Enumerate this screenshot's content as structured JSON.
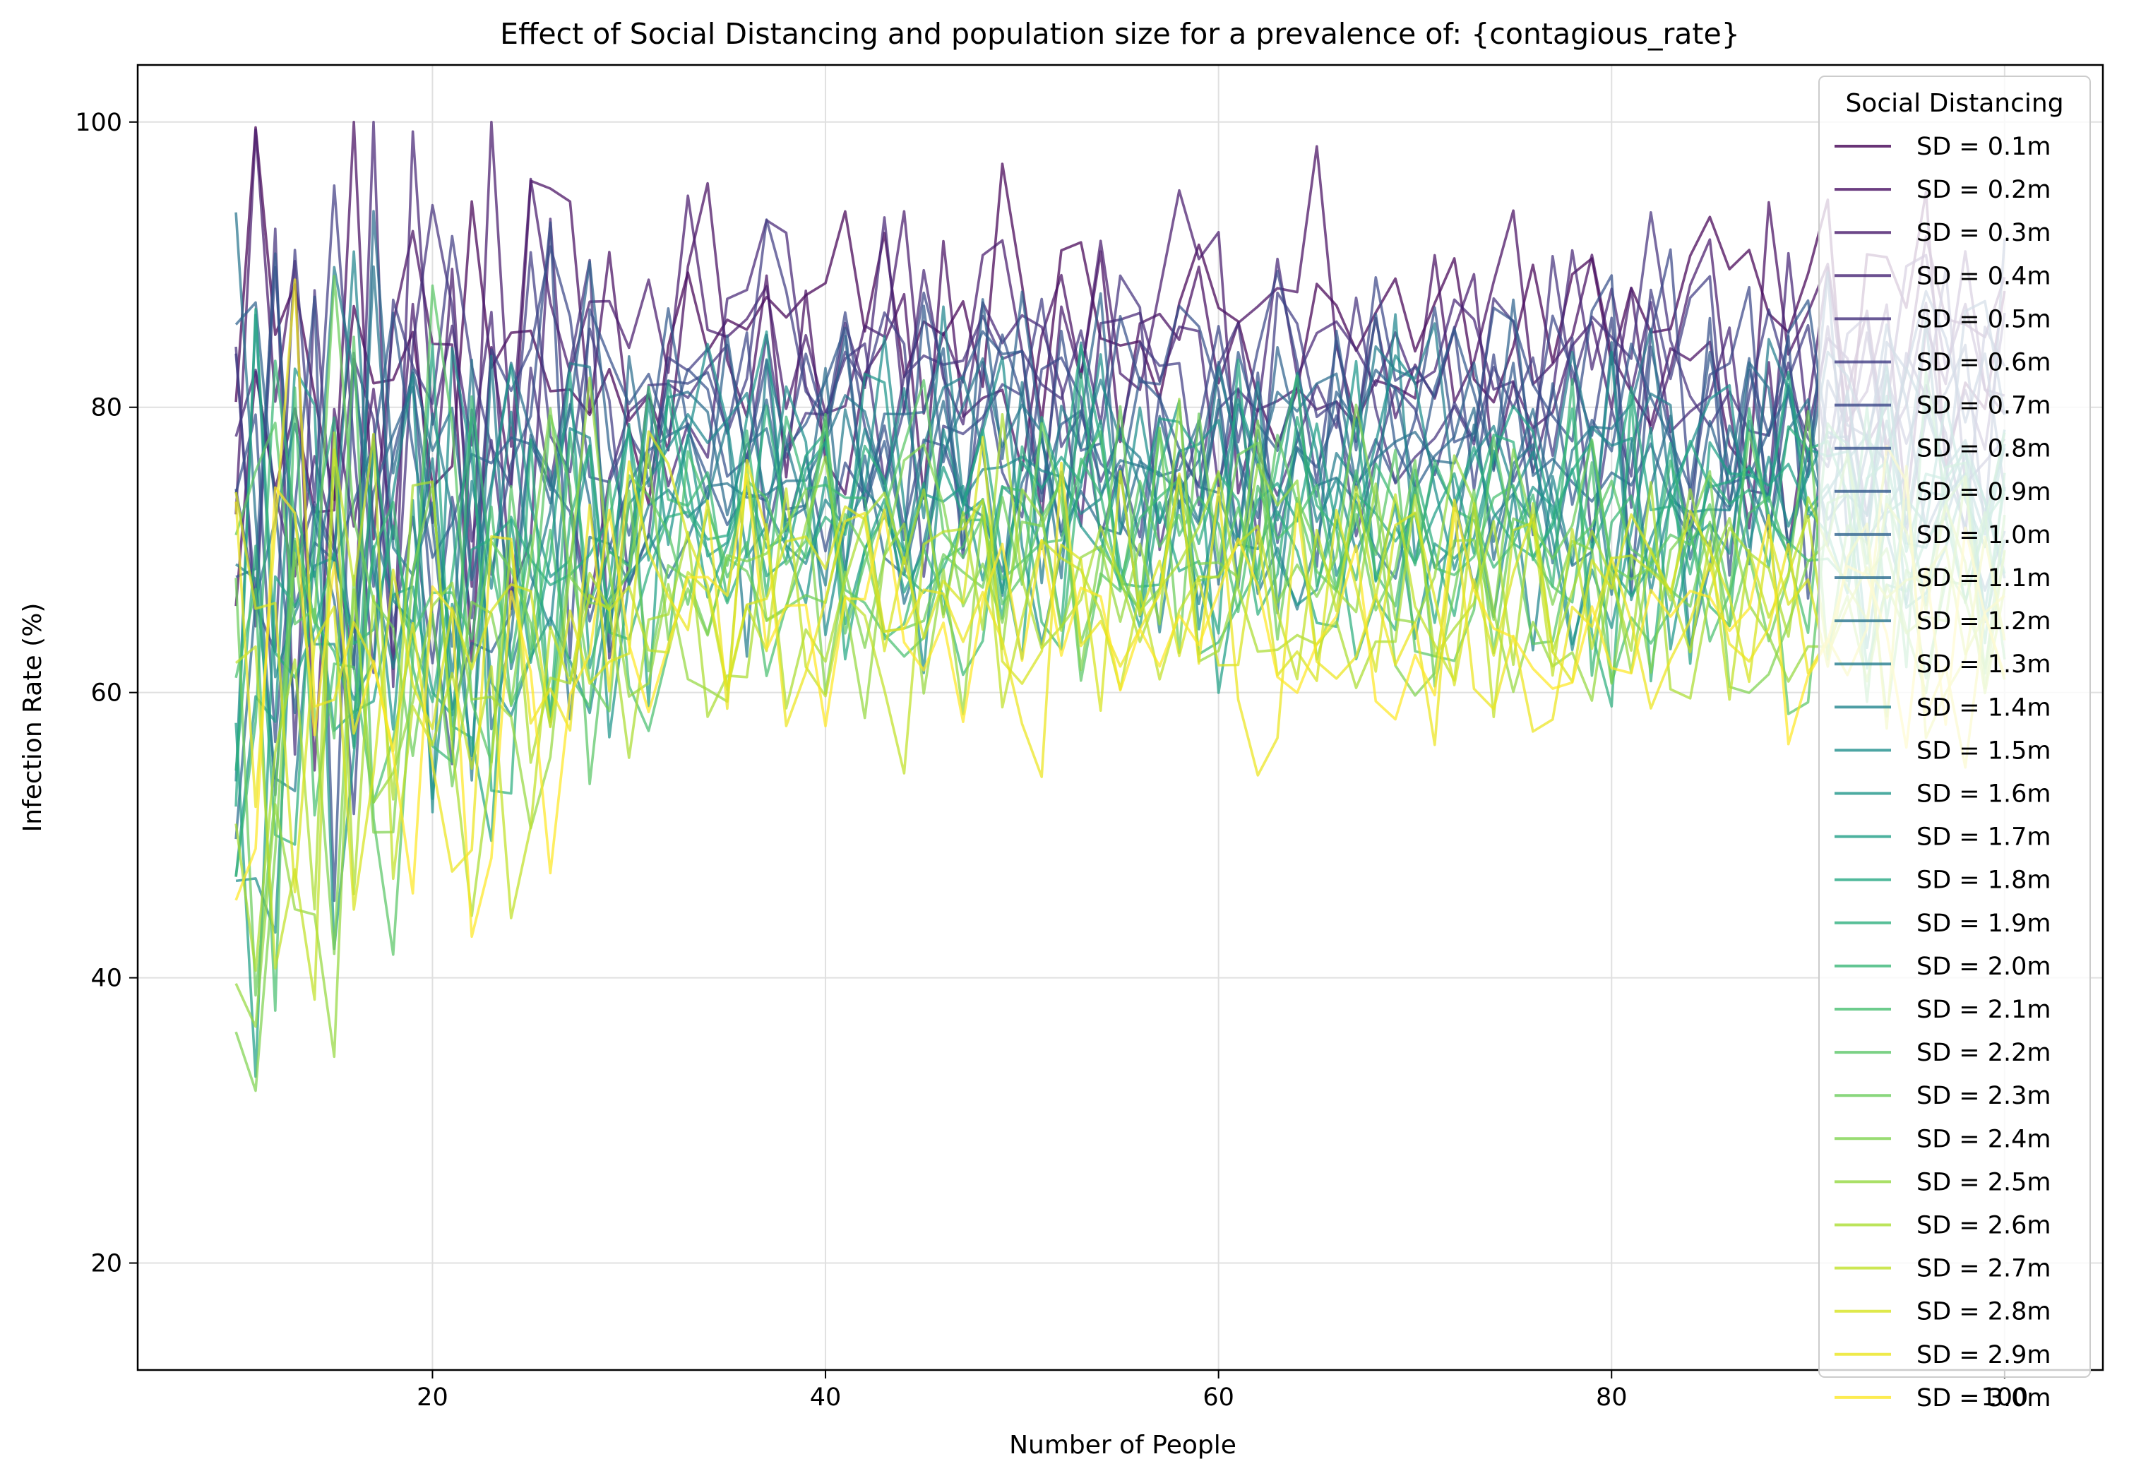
{
  "chart_data": {
    "type": "line",
    "title": "Effect of Social Distancing and population size for a prevalence of: {contagious_rate}",
    "xlabel": "Number of People",
    "ylabel": "Infection Rate (%)",
    "xlim": [
      5,
      105
    ],
    "ylim": [
      12.5,
      104
    ],
    "xticks": [
      20,
      40,
      60,
      80,
      100
    ],
    "yticks": [
      20,
      40,
      60,
      80,
      100
    ],
    "grid": true,
    "legend": {
      "title": "Social Distancing",
      "placement": "top-right"
    },
    "colormap": "viridis",
    "series_note": "30 noisy series, x = 10..100 step 1; values summarized by mean trend per series",
    "x": [
      10,
      100
    ],
    "series": [
      {
        "name": "SD = 0.1m",
        "color": "#440154",
        "mean": 86,
        "spread": 9
      },
      {
        "name": "SD = 0.2m",
        "color": "#470e61",
        "mean": 85,
        "spread": 9
      },
      {
        "name": "SD = 0.3m",
        "color": "#481a6c",
        "mean": 84,
        "spread": 9
      },
      {
        "name": "SD = 0.4m",
        "color": "#472676",
        "mean": 83,
        "spread": 9
      },
      {
        "name": "SD = 0.5m",
        "color": "#45327d",
        "mean": 82,
        "spread": 9
      },
      {
        "name": "SD = 0.6m",
        "color": "#413d84",
        "mean": 81,
        "spread": 9
      },
      {
        "name": "SD = 0.7m",
        "color": "#3c4788",
        "mean": 80,
        "spread": 9
      },
      {
        "name": "SD = 0.8m",
        "color": "#38518b",
        "mean": 79,
        "spread": 9
      },
      {
        "name": "SD = 0.9m",
        "color": "#335a8d",
        "mean": 78,
        "spread": 9
      },
      {
        "name": "SD = 1.0m",
        "color": "#2f638e",
        "mean": 77,
        "spread": 9
      },
      {
        "name": "SD = 1.1m",
        "color": "#2b6c8e",
        "mean": 76,
        "spread": 9
      },
      {
        "name": "SD = 1.2m",
        "color": "#28748e",
        "mean": 75.5,
        "spread": 9
      },
      {
        "name": "SD = 1.3m",
        "color": "#257d8e",
        "mean": 75,
        "spread": 9
      },
      {
        "name": "SD = 1.4m",
        "color": "#21858d",
        "mean": 74.5,
        "spread": 9
      },
      {
        "name": "SD = 1.5m",
        "color": "#1f8e8c",
        "mean": 74,
        "spread": 9
      },
      {
        "name": "SD = 1.6m",
        "color": "#1f968a",
        "mean": 73,
        "spread": 9
      },
      {
        "name": "SD = 1.7m",
        "color": "#209f87",
        "mean": 72.5,
        "spread": 9
      },
      {
        "name": "SD = 1.8m",
        "color": "#25a783",
        "mean": 72,
        "spread": 9
      },
      {
        "name": "SD = 1.9m",
        "color": "#2eaf7e",
        "mean": 71.5,
        "spread": 9
      },
      {
        "name": "SD = 2.0m",
        "color": "#3ab777",
        "mean": 71,
        "spread": 9
      },
      {
        "name": "SD = 2.1m",
        "color": "#49bf70",
        "mean": 70.5,
        "spread": 9
      },
      {
        "name": "SD = 2.2m",
        "color": "#5ac667",
        "mean": 70,
        "spread": 9
      },
      {
        "name": "SD = 2.3m",
        "color": "#6ccd5c",
        "mean": 69,
        "spread": 9
      },
      {
        "name": "SD = 2.4m",
        "color": "#80d350",
        "mean": 68.5,
        "spread": 9
      },
      {
        "name": "SD = 2.5m",
        "color": "#95d841",
        "mean": 68,
        "spread": 9
      },
      {
        "name": "SD = 2.6m",
        "color": "#abdd32",
        "mean": 67,
        "spread": 9
      },
      {
        "name": "SD = 2.7m",
        "color": "#c1e128",
        "mean": 66.5,
        "spread": 9
      },
      {
        "name": "SD = 2.8m",
        "color": "#d7e31f",
        "mean": 66,
        "spread": 9
      },
      {
        "name": "SD = 2.9m",
        "color": "#ebe51e",
        "mean": 65,
        "spread": 9
      },
      {
        "name": "SD = 3.0m",
        "color": "#fde725",
        "mean": 64,
        "spread": 9
      }
    ]
  }
}
